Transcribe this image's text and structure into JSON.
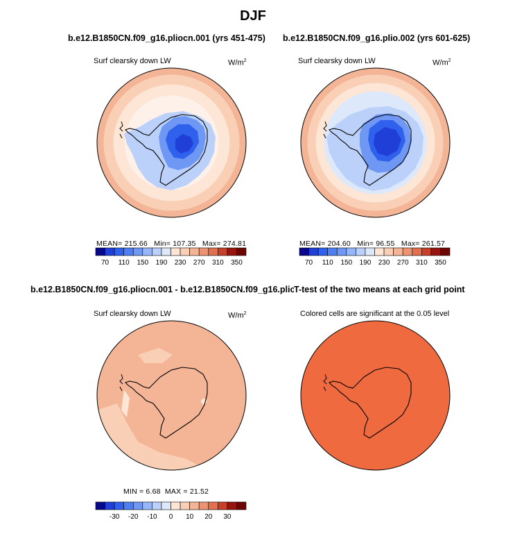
{
  "figure": {
    "title": "DJF",
    "units_label": "W/m",
    "units_exp": "2"
  },
  "panels": [
    {
      "title": "b.e12.B1850CN.f09_g16.pliocn.001 (yrs 451-475)",
      "variable": "Surf clearsky down LW",
      "stats": {
        "mean": "MEAN= 215.66",
        "min": "Min= 107.35",
        "max": "Max= 274.81"
      }
    },
    {
      "title": "b.e12.B1850CN.f09_g16.plio.002 (yrs 601-625)",
      "variable": "Surf clearsky down LW",
      "stats": {
        "mean": "MEAN= 204.60",
        "min": "Min= 96.55",
        "max": "Max= 261.57"
      }
    },
    {
      "title": "b.e12.B1850CN.f09_g16.pliocn.001 - b.e12.B1850CN.f09_g16.plio.002",
      "variable": "Surf clearsky down LW",
      "stats": {
        "min": "MIN =    6.68",
        "max": "MAX =   21.52"
      }
    },
    {
      "title": "T-test of the two means at each grid point",
      "variable": "Colored cells are significant at the 0.05 level"
    }
  ],
  "chart_data": [
    {
      "type": "heatmap",
      "projection": "south-polar-stereographic",
      "title": "b.e12.B1850CN.f09_g16.pliocn.001 (yrs 451-475)",
      "variable": "Surf clearsky down LW",
      "units": "W/m2",
      "mean": 215.66,
      "min": 107.35,
      "max": 274.81,
      "levels": [
        70,
        90,
        110,
        130,
        150,
        170,
        190,
        210,
        230,
        250,
        270,
        290,
        310,
        330,
        350
      ],
      "colorbar_labels": [
        "70",
        "110",
        "150",
        "190",
        "230",
        "270",
        "310",
        "350"
      ],
      "colors": [
        "#08088c",
        "#1f3fd6",
        "#2f61ec",
        "#4d7ff2",
        "#6f98f5",
        "#97b6f8",
        "#bcd1fa",
        "#dde8fb",
        "#fde6d6",
        "#f9d0b6",
        "#f4b597",
        "#ec9472",
        "#e26f4d",
        "#c6402a",
        "#97150e",
        "#6d0503"
      ]
    },
    {
      "type": "heatmap",
      "projection": "south-polar-stereographic",
      "title": "b.e12.B1850CN.f09_g16.plio.002 (yrs 601-625)",
      "variable": "Surf clearsky down LW",
      "units": "W/m2",
      "mean": 204.6,
      "min": 96.55,
      "max": 261.57,
      "levels": [
        70,
        90,
        110,
        130,
        150,
        170,
        190,
        210,
        230,
        250,
        270,
        290,
        310,
        330,
        350
      ],
      "colorbar_labels": [
        "70",
        "110",
        "150",
        "190",
        "230",
        "270",
        "310",
        "350"
      ],
      "colors": [
        "#08088c",
        "#1f3fd6",
        "#2f61ec",
        "#4d7ff2",
        "#6f98f5",
        "#97b6f8",
        "#bcd1fa",
        "#dde8fb",
        "#fde6d6",
        "#f9d0b6",
        "#f4b597",
        "#ec9472",
        "#e26f4d",
        "#c6402a",
        "#97150e",
        "#6d0503"
      ]
    },
    {
      "type": "heatmap",
      "projection": "south-polar-stereographic",
      "title": "b.e12.B1850CN.f09_g16.pliocn.001 - b.e12.B1850CN.f09_g16.plio.002",
      "variable": "Surf clearsky down LW",
      "units": "W/m2",
      "min": 6.68,
      "max": 21.52,
      "levels": [
        -35,
        -30,
        -25,
        -20,
        -15,
        -10,
        -5,
        0,
        5,
        10,
        15,
        20,
        25,
        30,
        35
      ],
      "colorbar_labels": [
        "-30",
        "-20",
        "-10",
        "0",
        "10",
        "20",
        "30"
      ],
      "colors": [
        "#08088c",
        "#1f3fd6",
        "#2f61ec",
        "#4d7ff2",
        "#6f98f5",
        "#97b6f8",
        "#bcd1fa",
        "#dde8fb",
        "#fde6d6",
        "#f9d0b6",
        "#f4b597",
        "#ec9472",
        "#e26f4d",
        "#c6402a",
        "#97150e",
        "#6d0503"
      ]
    },
    {
      "type": "heatmap",
      "projection": "south-polar-stereographic",
      "title": "T-test of the two means at each grid point",
      "variable": "Colored cells are significant at the 0.05 level",
      "significant_everywhere": true,
      "fill_color": "#ef6a3f"
    }
  ]
}
